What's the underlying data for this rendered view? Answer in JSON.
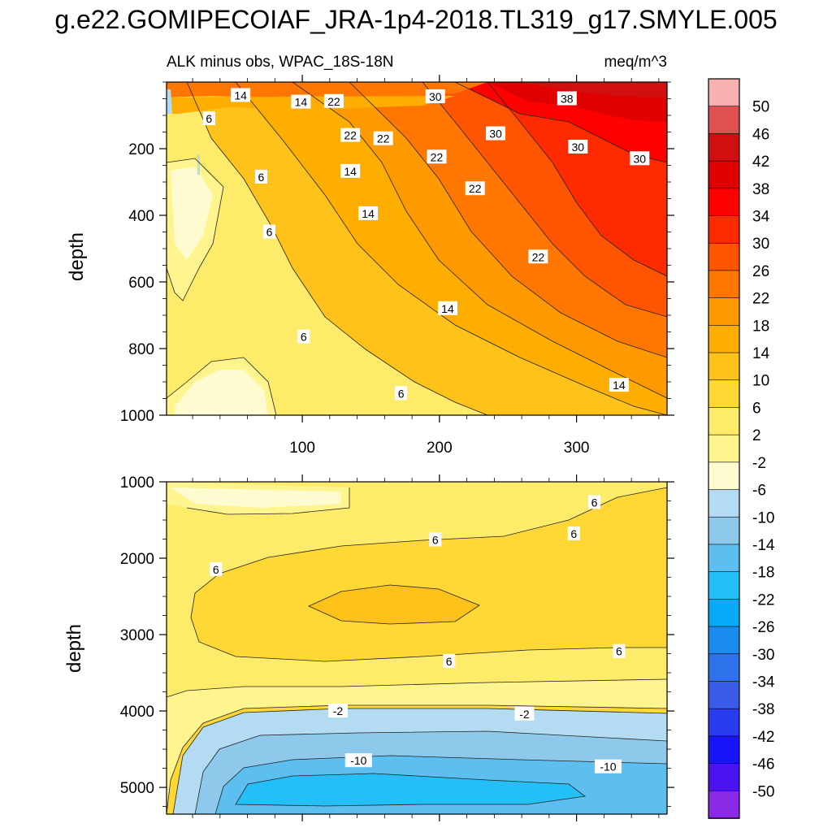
{
  "page_title": "g.e22.GOMIPECOIAF_JRA-1p4-2018.TL319_g17.SMYLE.005",
  "chart_data": {
    "type": "heatmap",
    "title": "ALK minus obs, WPAC_18S-18N",
    "units": "meq/m^3",
    "xlabel": "",
    "ylabel": "depth",
    "x_range": [
      1,
      366
    ],
    "x_ticks": [
      100,
      200,
      300
    ],
    "panels": [
      {
        "name": "upper",
        "ylim": [
          0,
          1000
        ],
        "y_ticks": [
          200,
          400,
          600,
          800,
          1000
        ],
        "contour_labels": [
          {
            "text": "14",
            "x": 55,
            "y": 40
          },
          {
            "text": "14",
            "x": 99,
            "y": 60
          },
          {
            "text": "22",
            "x": 123,
            "y": 58
          },
          {
            "text": "30",
            "x": 197,
            "y": 44
          },
          {
            "text": "38",
            "x": 293,
            "y": 50
          },
          {
            "text": "6",
            "x": 32,
            "y": 110
          },
          {
            "text": "22",
            "x": 135,
            "y": 160
          },
          {
            "text": "22",
            "x": 159,
            "y": 170
          },
          {
            "text": "30",
            "x": 241,
            "y": 155
          },
          {
            "text": "30",
            "x": 301,
            "y": 195
          },
          {
            "text": "30",
            "x": 346,
            "y": 230
          },
          {
            "text": "22",
            "x": 198,
            "y": 225
          },
          {
            "text": "6",
            "x": 70,
            "y": 285
          },
          {
            "text": "14",
            "x": 135,
            "y": 268
          },
          {
            "text": "22",
            "x": 226,
            "y": 320
          },
          {
            "text": "14",
            "x": 148,
            "y": 395
          },
          {
            "text": "6",
            "x": 76,
            "y": 450
          },
          {
            "text": "22",
            "x": 272,
            "y": 525
          },
          {
            "text": "14",
            "x": 206,
            "y": 680
          },
          {
            "text": "6",
            "x": 101,
            "y": 765
          },
          {
            "text": "14",
            "x": 331,
            "y": 910
          },
          {
            "text": "6",
            "x": 172,
            "y": 935
          }
        ]
      },
      {
        "name": "lower",
        "ylim": [
          1000,
          5350
        ],
        "y_ticks": [
          1000,
          2000,
          3000,
          4000,
          5000
        ],
        "contour_labels": [
          {
            "text": "6",
            "x": 313,
            "y": 1270
          },
          {
            "text": "6",
            "x": 298,
            "y": 1680
          },
          {
            "text": "6",
            "x": 197,
            "y": 1760
          },
          {
            "text": "6",
            "x": 37,
            "y": 2150
          },
          {
            "text": "6",
            "x": 207,
            "y": 3350
          },
          {
            "text": "6",
            "x": 331,
            "y": 3220
          },
          {
            "text": "-2",
            "x": 126,
            "y": 4000
          },
          {
            "text": "-2",
            "x": 262,
            "y": 4040
          },
          {
            "text": "-10",
            "x": 141,
            "y": 4650
          },
          {
            "text": "-10",
            "x": 323,
            "y": 4730
          }
        ]
      }
    ],
    "colorbar": {
      "labels": [
        "50",
        "46",
        "42",
        "38",
        "34",
        "30",
        "26",
        "22",
        "18",
        "14",
        "10",
        "6",
        "2",
        "-2",
        "-6",
        "-10",
        "-14",
        "-18",
        "-22",
        "-26",
        "-30",
        "-34",
        "-38",
        "-42",
        "-46",
        "-50"
      ],
      "colors": [
        "#f8b0b0",
        "#e05050",
        "#d01010",
        "#e00000",
        "#ff0000",
        "#ff2a00",
        "#ff5500",
        "#ff7700",
        "#ff9900",
        "#ffae00",
        "#ffc21a",
        "#ffd836",
        "#ffeb6a",
        "#fff48e",
        "#fffbd0",
        "#b3dcf2",
        "#8ec9ec",
        "#5dbfef",
        "#25bff7",
        "#08a9f6",
        "#1a8cf0",
        "#2e72ec",
        "#3a5ae8",
        "#2a3cf0",
        "#1a14f8",
        "#4a14f0",
        "#8a2ae8"
      ]
    }
  }
}
